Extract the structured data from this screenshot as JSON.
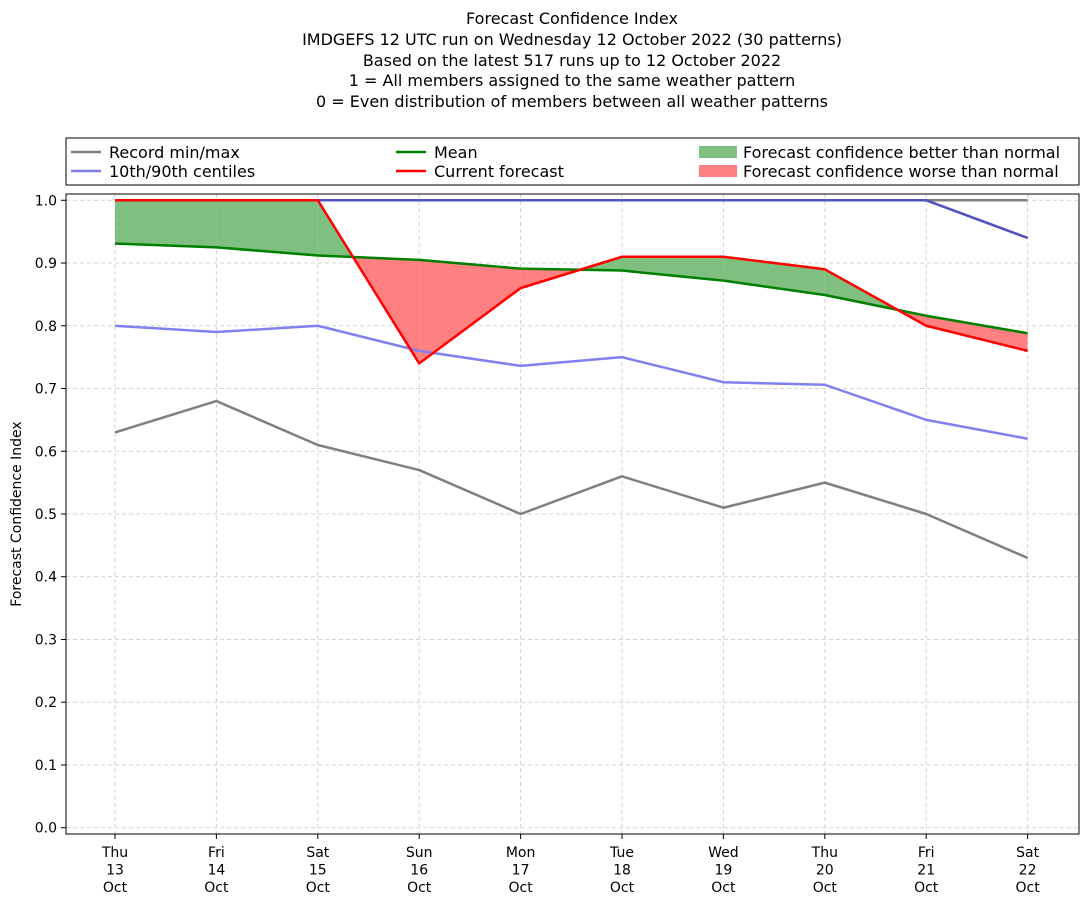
{
  "title_lines": [
    "Forecast Confidence Index",
    "IMDGEFS 12 UTC run on Wednesday 12 October 2022 (30 patterns)",
    "Based on the latest 517 runs up to 12 October 2022",
    "1 = All members assigned to the same weather pattern",
    "0 = Even distribution of members between all weather patterns"
  ],
  "legend": {
    "record": "Record min/max",
    "centiles": "10th/90th centiles",
    "mean": "Mean",
    "current": "Current forecast",
    "better": "Forecast confidence better than normal",
    "worse": "Forecast confidence worse than normal"
  },
  "colors": {
    "record": "#808080",
    "centiles": "#8080f0",
    "p90": "#5050c0",
    "mean": "#008000",
    "current": "#ff0000",
    "better_fill": "#7fbf7f",
    "worse_fill": "#ff8080",
    "grid": "#d3d3d3"
  },
  "chart_data": {
    "type": "line",
    "ylabel": "Forecast Confidence Index",
    "ylim": [
      -0.01,
      1.01
    ],
    "yticks": [
      "0.0",
      "0.1",
      "0.2",
      "0.3",
      "0.4",
      "0.5",
      "0.6",
      "0.7",
      "0.8",
      "0.9",
      "1.0"
    ],
    "grid": true,
    "legend_position": "top",
    "categories": [
      {
        "day": "Thu",
        "date": "13",
        "month": "Oct"
      },
      {
        "day": "Fri",
        "date": "14",
        "month": "Oct"
      },
      {
        "day": "Sat",
        "date": "15",
        "month": "Oct"
      },
      {
        "day": "Sun",
        "date": "16",
        "month": "Oct"
      },
      {
        "day": "Mon",
        "date": "17",
        "month": "Oct"
      },
      {
        "day": "Tue",
        "date": "18",
        "month": "Oct"
      },
      {
        "day": "Wed",
        "date": "19",
        "month": "Oct"
      },
      {
        "day": "Thu",
        "date": "20",
        "month": "Oct"
      },
      {
        "day": "Fri",
        "date": "21",
        "month": "Oct"
      },
      {
        "day": "Sat",
        "date": "22",
        "month": "Oct"
      }
    ],
    "series": [
      {
        "name": "Record min/max",
        "key": "record_min",
        "values": [
          0.63,
          0.68,
          0.61,
          0.57,
          0.5,
          0.56,
          0.51,
          0.55,
          0.5,
          0.43
        ]
      },
      {
        "name": "Record min/max",
        "key": "record_max",
        "values": [
          1.0,
          1.0,
          1.0,
          1.0,
          1.0,
          1.0,
          1.0,
          1.0,
          1.0,
          1.0
        ]
      },
      {
        "name": "10th/90th centiles",
        "key": "p10",
        "values": [
          0.8,
          0.79,
          0.8,
          0.76,
          0.736,
          0.75,
          0.71,
          0.706,
          0.65,
          0.62
        ]
      },
      {
        "name": "10th/90th centiles",
        "key": "p90",
        "values": [
          1.0,
          1.0,
          1.0,
          1.0,
          1.0,
          1.0,
          1.0,
          1.0,
          1.0,
          0.94
        ]
      },
      {
        "name": "Mean",
        "key": "mean",
        "values": [
          0.931,
          0.925,
          0.912,
          0.905,
          0.891,
          0.888,
          0.872,
          0.849,
          0.816,
          0.788
        ]
      },
      {
        "name": "Current forecast",
        "key": "current",
        "values": [
          1.0,
          1.0,
          1.0,
          0.74,
          0.86,
          0.91,
          0.91,
          0.89,
          0.8,
          0.76
        ]
      }
    ]
  }
}
